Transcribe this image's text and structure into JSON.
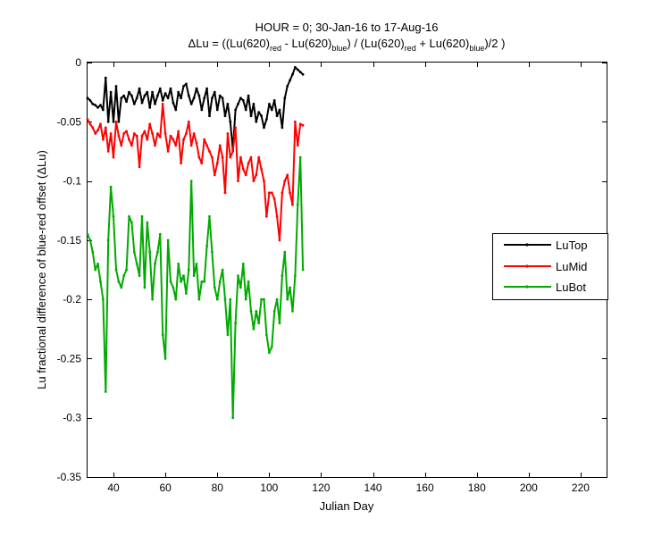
{
  "chart_data": {
    "type": "line",
    "title_line1": "HOUR = 0; 30-Jan-16 to 17-Aug-16",
    "title_line2": {
      "prefix": "ΔLu = ((Lu(620)",
      "sub_red1": "red",
      "mid1": " - Lu(620)",
      "sub_blue1": "blue",
      "mid2": ") / (Lu(620)",
      "sub_red2": "red",
      "mid3": " + Lu(620)",
      "sub_blue2": "blue",
      "suffix": ")/2  )"
    },
    "xlabel": "Julian Day",
    "ylabel": "Lu fractional difference of blue-red offset (ΔLu)",
    "xlim": [
      30,
      230
    ],
    "ylim": [
      -0.35,
      0
    ],
    "x_ticks": [
      40,
      60,
      80,
      100,
      120,
      140,
      160,
      180,
      200,
      220
    ],
    "y_ticks": [
      0,
      -0.05,
      -0.1,
      -0.15,
      -0.2,
      -0.25,
      -0.3,
      -0.35
    ],
    "x_tick_labels": [
      "40",
      "60",
      "80",
      "100",
      "120",
      "140",
      "160",
      "180",
      "200",
      "220"
    ],
    "y_tick_labels": [
      "0",
      "-0.05",
      "-0.1",
      "-0.15",
      "-0.2",
      "-0.25",
      "-0.3",
      "-0.35"
    ],
    "grid": false,
    "legend_position": "right",
    "series": [
      {
        "name": "LuTop",
        "color": "#000000",
        "x": [
          30,
          31,
          32,
          33,
          34,
          35,
          36,
          37,
          38,
          39,
          40,
          41,
          42,
          43,
          44,
          45,
          46,
          47,
          48,
          49,
          50,
          51,
          52,
          53,
          54,
          55,
          56,
          57,
          58,
          59,
          60,
          61,
          62,
          63,
          64,
          65,
          66,
          67,
          68,
          69,
          70,
          71,
          72,
          73,
          74,
          75,
          76,
          77,
          78,
          79,
          80,
          81,
          82,
          83,
          84,
          85,
          86,
          87,
          88,
          89,
          90,
          91,
          92,
          93,
          94,
          95,
          96,
          97,
          98,
          99,
          100,
          101,
          102,
          103,
          104,
          105,
          106,
          107,
          108,
          109,
          110,
          111,
          112,
          113
        ],
        "y": [
          -0.03,
          -0.032,
          -0.035,
          -0.036,
          -0.038,
          -0.036,
          -0.04,
          -0.013,
          -0.05,
          -0.025,
          -0.05,
          -0.02,
          -0.05,
          -0.03,
          -0.028,
          -0.033,
          -0.025,
          -0.028,
          -0.035,
          -0.03,
          -0.022,
          -0.034,
          -0.028,
          -0.025,
          -0.038,
          -0.025,
          -0.035,
          -0.028,
          -0.022,
          -0.032,
          -0.026,
          -0.03,
          -0.022,
          -0.034,
          -0.04,
          -0.025,
          -0.03,
          -0.02,
          -0.018,
          -0.028,
          -0.035,
          -0.03,
          -0.022,
          -0.028,
          -0.04,
          -0.03,
          -0.022,
          -0.045,
          -0.03,
          -0.025,
          -0.04,
          -0.028,
          -0.03,
          -0.045,
          -0.035,
          -0.05,
          -0.074,
          -0.04,
          -0.035,
          -0.03,
          -0.032,
          -0.04,
          -0.028,
          -0.045,
          -0.035,
          -0.05,
          -0.042,
          -0.045,
          -0.055,
          -0.048,
          -0.035,
          -0.04,
          -0.032,
          -0.045,
          -0.04,
          -0.055,
          -0.03,
          -0.02,
          -0.015,
          -0.01,
          -0.004,
          -0.006,
          -0.008,
          -0.01
        ]
      },
      {
        "name": "LuMid",
        "color": "#ff0000",
        "x": [
          30,
          31,
          32,
          33,
          34,
          35,
          36,
          37,
          38,
          39,
          40,
          41,
          42,
          43,
          44,
          45,
          46,
          47,
          48,
          49,
          50,
          51,
          52,
          53,
          54,
          55,
          56,
          57,
          58,
          59,
          60,
          61,
          62,
          63,
          64,
          65,
          66,
          67,
          68,
          69,
          70,
          71,
          72,
          73,
          74,
          75,
          76,
          77,
          78,
          79,
          80,
          81,
          82,
          83,
          84,
          85,
          86,
          87,
          88,
          89,
          90,
          91,
          92,
          93,
          94,
          95,
          96,
          97,
          98,
          99,
          100,
          101,
          102,
          103,
          104,
          105,
          106,
          107,
          108,
          109,
          110,
          111,
          112,
          113
        ],
        "y": [
          -0.048,
          -0.052,
          -0.055,
          -0.06,
          -0.057,
          -0.052,
          -0.065,
          -0.055,
          -0.075,
          -0.06,
          -0.08,
          -0.05,
          -0.062,
          -0.07,
          -0.06,
          -0.058,
          -0.065,
          -0.07,
          -0.06,
          -0.062,
          -0.088,
          -0.062,
          -0.058,
          -0.065,
          -0.052,
          -0.06,
          -0.07,
          -0.06,
          -0.063,
          -0.035,
          -0.06,
          -0.075,
          -0.062,
          -0.065,
          -0.07,
          -0.058,
          -0.085,
          -0.065,
          -0.06,
          -0.05,
          -0.07,
          -0.06,
          -0.068,
          -0.08,
          -0.085,
          -0.065,
          -0.07,
          -0.075,
          -0.08,
          -0.095,
          -0.085,
          -0.07,
          -0.08,
          -0.11,
          -0.06,
          -0.08,
          -0.075,
          -0.055,
          -0.1,
          -0.08,
          -0.09,
          -0.095,
          -0.085,
          -0.08,
          -0.1,
          -0.095,
          -0.08,
          -0.09,
          -0.1,
          -0.13,
          -0.11,
          -0.11,
          -0.115,
          -0.13,
          -0.15,
          -0.11,
          -0.1,
          -0.095,
          -0.11,
          -0.12,
          -0.05,
          -0.07,
          -0.052,
          -0.053
        ]
      },
      {
        "name": "LuBot",
        "color": "#00aa00",
        "x": [
          30,
          31,
          32,
          33,
          34,
          35,
          36,
          37,
          38,
          39,
          40,
          41,
          42,
          43,
          44,
          45,
          46,
          47,
          48,
          49,
          50,
          51,
          52,
          53,
          54,
          55,
          56,
          57,
          58,
          59,
          60,
          61,
          62,
          63,
          64,
          65,
          66,
          67,
          68,
          69,
          70,
          71,
          72,
          73,
          74,
          75,
          76,
          77,
          78,
          79,
          80,
          81,
          82,
          83,
          84,
          85,
          86,
          87,
          88,
          89,
          90,
          91,
          92,
          93,
          94,
          95,
          96,
          97,
          98,
          99,
          100,
          101,
          102,
          103,
          104,
          105,
          106,
          107,
          108,
          109,
          110,
          111,
          112,
          113
        ],
        "y": [
          -0.145,
          -0.15,
          -0.16,
          -0.175,
          -0.17,
          -0.185,
          -0.2,
          -0.278,
          -0.15,
          -0.105,
          -0.13,
          -0.175,
          -0.185,
          -0.19,
          -0.18,
          -0.175,
          -0.13,
          -0.135,
          -0.16,
          -0.17,
          -0.18,
          -0.13,
          -0.19,
          -0.135,
          -0.16,
          -0.2,
          -0.17,
          -0.16,
          -0.145,
          -0.23,
          -0.25,
          -0.15,
          -0.185,
          -0.19,
          -0.2,
          -0.17,
          -0.185,
          -0.18,
          -0.195,
          -0.175,
          -0.1,
          -0.18,
          -0.17,
          -0.2,
          -0.185,
          -0.185,
          -0.155,
          -0.13,
          -0.16,
          -0.19,
          -0.2,
          -0.185,
          -0.175,
          -0.2,
          -0.23,
          -0.2,
          -0.3,
          -0.22,
          -0.18,
          -0.19,
          -0.17,
          -0.2,
          -0.185,
          -0.21,
          -0.225,
          -0.21,
          -0.22,
          -0.2,
          -0.2,
          -0.23,
          -0.245,
          -0.24,
          -0.21,
          -0.2,
          -0.22,
          -0.18,
          -0.16,
          -0.2,
          -0.19,
          -0.21,
          -0.18,
          -0.12,
          -0.08,
          -0.175
        ]
      }
    ]
  }
}
